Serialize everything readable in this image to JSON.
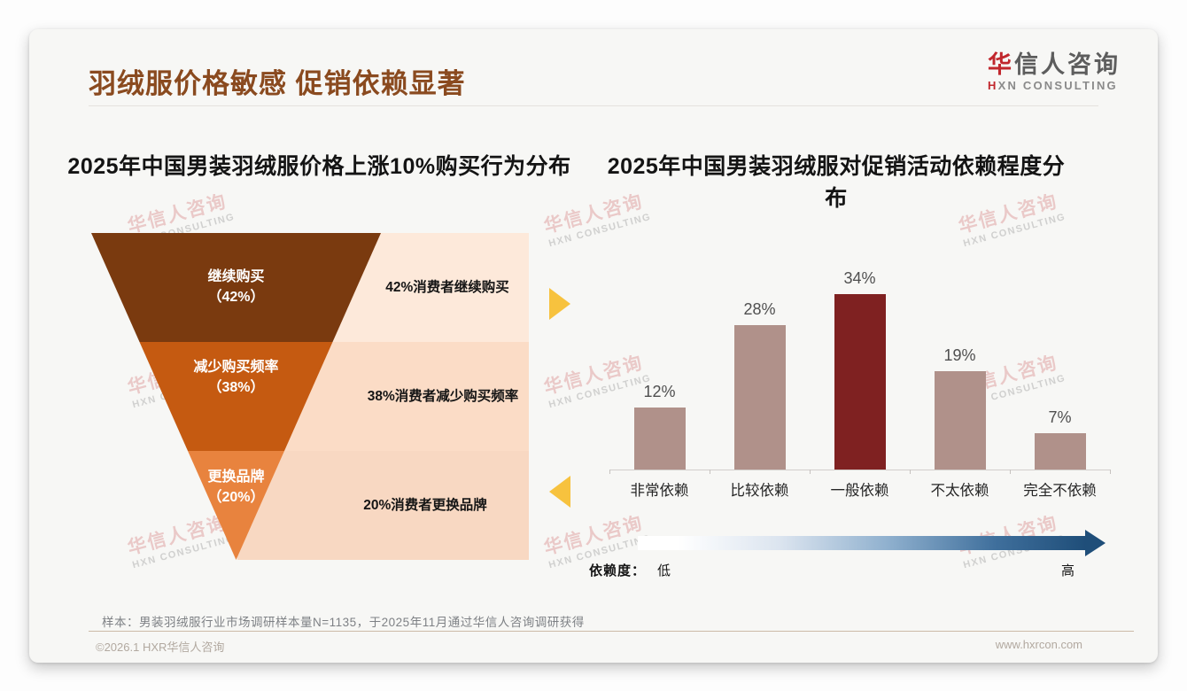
{
  "slide": {
    "title": "羽绒服价格敏感 促销依赖显著",
    "accent_color": "#8a4a1f",
    "logo": {
      "cn_first": "华",
      "cn_rest": "信人咨询",
      "en_first": "H",
      "en_rest": "XN CONSULTING"
    },
    "watermark": {
      "line1": "华信人咨询",
      "line2": "HXN CONSULTING"
    },
    "footnote": "样本：男装羽绒服行业市场调研样本量N=1135，于2025年11月通过华信人咨询调研获得",
    "footer_left": "©2026.1 HXR华信人咨询",
    "footer_right": "www.hxrcon.com"
  },
  "chart_data": [
    {
      "type": "funnel",
      "title": "2025年中国男装羽绒服价格上涨10%购买行为分布",
      "stages": [
        {
          "label": "继续购买",
          "pct": "（42%）",
          "value": 42,
          "color": "#7a3a0f",
          "note": "42%消费者继续购买",
          "note_bg": "#fde9da"
        },
        {
          "label": "减少购买频率",
          "pct": "（38%）",
          "value": 38,
          "color": "#c55a11",
          "note": "38%消费者减少购买频率",
          "note_bg": "#fbdcc6"
        },
        {
          "label": "更换品牌",
          "pct": "（20%）",
          "value": 20,
          "color": "#e8833e",
          "note": "20%消费者更换品牌",
          "note_bg": "#f8d8c2"
        }
      ],
      "connector_arrow_color": "#f7c23e"
    },
    {
      "type": "bar",
      "title": "2025年中国男装羽绒服对促销活动依赖程度分布",
      "categories": [
        "非常依赖",
        "比较依赖",
        "一般依赖",
        "不太依赖",
        "完全不依赖"
      ],
      "values": [
        12,
        28,
        34,
        19,
        7
      ],
      "data_labels": [
        "12%",
        "28%",
        "34%",
        "19%",
        "7%"
      ],
      "ylim": [
        0,
        40
      ],
      "grid": false,
      "legend": false,
      "bar_color": "#b0918a",
      "highlight_index": 2,
      "highlight_color": "#7f2121",
      "dependency_scale": {
        "label": "依赖度：",
        "low": "低",
        "high": "高",
        "gradient_to": "#1f4e79"
      }
    }
  ]
}
